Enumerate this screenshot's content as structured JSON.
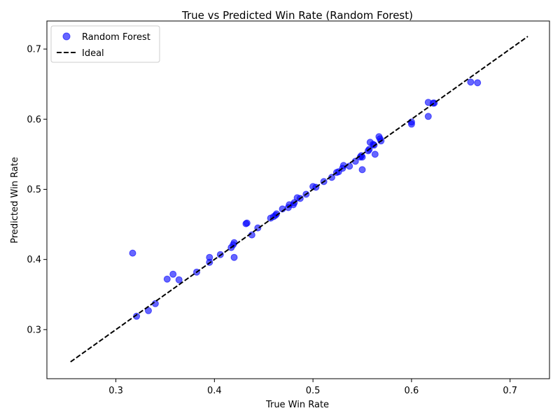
{
  "chart_data": {
    "type": "scatter",
    "title": "True vs Predicted Win Rate (Random Forest)",
    "xlabel": "True Win Rate",
    "ylabel": "Predicted Win Rate",
    "xlim": [
      0.23,
      0.74
    ],
    "ylim": [
      0.23,
      0.74
    ],
    "xticks": [
      0.3,
      0.4,
      0.5,
      0.6,
      0.7
    ],
    "yticks": [
      0.3,
      0.4,
      0.5,
      0.6,
      0.7
    ],
    "xtick_labels": [
      "0.3",
      "0.4",
      "0.5",
      "0.6",
      "0.7"
    ],
    "ytick_labels": [
      "0.3",
      "0.4",
      "0.5",
      "0.6",
      "0.7"
    ],
    "grid": false,
    "legend": {
      "position": "upper-left",
      "entries": [
        {
          "label": "Random Forest",
          "kind": "marker"
        },
        {
          "label": "Ideal",
          "kind": "dashed-line"
        }
      ]
    },
    "colors": {
      "points": "#0000ff",
      "ideal_line": "#000000"
    },
    "series": [
      {
        "name": "Random Forest",
        "x": [
          0.317,
          0.321,
          0.333,
          0.34,
          0.352,
          0.358,
          0.364,
          0.382,
          0.395,
          0.395,
          0.406,
          0.417,
          0.419,
          0.42,
          0.42,
          0.432,
          0.433,
          0.438,
          0.444,
          0.457,
          0.46,
          0.462,
          0.463,
          0.469,
          0.475,
          0.476,
          0.48,
          0.481,
          0.484,
          0.487,
          0.493,
          0.5,
          0.503,
          0.511,
          0.519,
          0.524,
          0.526,
          0.53,
          0.531,
          0.537,
          0.543,
          0.548,
          0.549,
          0.55,
          0.55,
          0.556,
          0.557,
          0.558,
          0.561,
          0.562,
          0.563,
          0.567,
          0.568,
          0.569,
          0.6,
          0.6,
          0.617,
          0.617,
          0.622,
          0.623,
          0.66,
          0.667
        ],
        "y": [
          0.409,
          0.319,
          0.327,
          0.337,
          0.372,
          0.379,
          0.371,
          0.382,
          0.396,
          0.403,
          0.407,
          0.417,
          0.421,
          0.424,
          0.403,
          0.451,
          0.452,
          0.435,
          0.445,
          0.459,
          0.461,
          0.463,
          0.465,
          0.472,
          0.474,
          0.478,
          0.478,
          0.481,
          0.488,
          0.487,
          0.493,
          0.504,
          0.503,
          0.511,
          0.517,
          0.524,
          0.525,
          0.53,
          0.534,
          0.533,
          0.54,
          0.546,
          0.548,
          0.546,
          0.528,
          0.555,
          0.557,
          0.567,
          0.564,
          0.563,
          0.55,
          0.575,
          0.572,
          0.569,
          0.596,
          0.593,
          0.604,
          0.624,
          0.623,
          0.623,
          0.653,
          0.652
        ]
      },
      {
        "name": "Ideal",
        "x": [
          0.254,
          0.718
        ],
        "y": [
          0.254,
          0.718
        ]
      }
    ]
  }
}
